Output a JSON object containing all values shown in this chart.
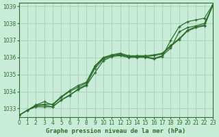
{
  "title": "Graphe pression niveau de la mer (hPa)",
  "bg_color": "#c8ecd8",
  "grid_color": "#aed4be",
  "line_color": "#2d6e2d",
  "xlim": [
    0,
    23
  ],
  "ylim": [
    1032.5,
    1039.2
  ],
  "yticks": [
    1033,
    1034,
    1035,
    1036,
    1037,
    1038,
    1039
  ],
  "xticks": [
    0,
    1,
    2,
    3,
    4,
    5,
    6,
    7,
    8,
    9,
    10,
    11,
    12,
    13,
    14,
    15,
    16,
    17,
    18,
    19,
    20,
    21,
    22,
    23
  ],
  "series": [
    [
      1032.6,
      1032.9,
      1033.1,
      1033.1,
      1033.1,
      1033.5,
      1033.8,
      1034.1,
      1034.35,
      1035.1,
      1035.8,
      1036.05,
      1036.1,
      1036.0,
      1036.0,
      1036.0,
      1035.9,
      1036.05,
      1037.0,
      1037.8,
      1038.1,
      1038.2,
      1038.3,
      1039.1
    ],
    [
      1032.6,
      1032.9,
      1033.15,
      1033.2,
      1033.1,
      1033.5,
      1033.75,
      1034.15,
      1034.4,
      1035.35,
      1035.9,
      1036.1,
      1036.15,
      1036.05,
      1036.05,
      1036.05,
      1035.95,
      1036.1,
      1036.55,
      1037.5,
      1037.75,
      1037.85,
      1038.0,
      1039.05
    ],
    [
      1032.6,
      1032.9,
      1033.2,
      1033.4,
      1033.2,
      1033.65,
      1034.0,
      1034.25,
      1034.5,
      1035.45,
      1035.95,
      1036.1,
      1036.2,
      1036.05,
      1036.05,
      1036.05,
      1036.1,
      1036.2,
      1036.65,
      1037.05,
      1037.55,
      1037.75,
      1037.85,
      1039.05
    ],
    [
      1032.6,
      1032.9,
      1033.2,
      1033.25,
      1033.25,
      1033.7,
      1034.05,
      1034.35,
      1034.55,
      1035.5,
      1036.0,
      1036.15,
      1036.25,
      1036.1,
      1036.1,
      1036.1,
      1036.15,
      1036.25,
      1036.7,
      1037.1,
      1037.6,
      1037.8,
      1037.9,
      1039.1
    ]
  ]
}
